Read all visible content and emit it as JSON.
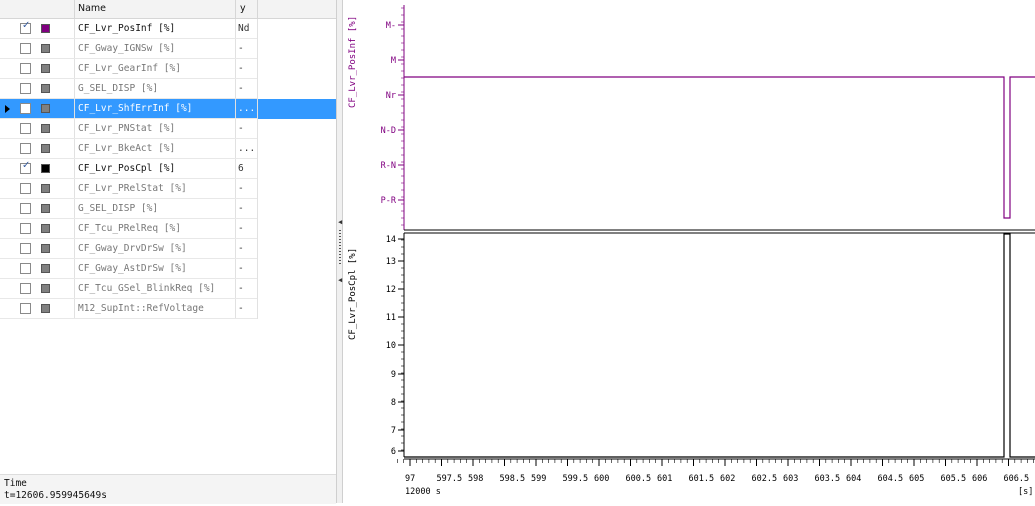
{
  "table": {
    "header": {
      "name": "Name",
      "y": "y"
    },
    "rows": [
      {
        "label": "CF_Lvr_PosInf [%]",
        "y": "Nd",
        "checked": true,
        "color": "#800080",
        "active": true
      },
      {
        "label": "CF_Gway_IGNSw [%]",
        "y": "-",
        "checked": false,
        "color": "#808080",
        "active": false
      },
      {
        "label": "CF_Lvr_GearInf [%]",
        "y": "-",
        "checked": false,
        "color": "#808080",
        "active": false
      },
      {
        "label": "G_SEL_DISP [%]",
        "y": "-",
        "checked": false,
        "color": "#808080",
        "active": false
      },
      {
        "label": "CF_Lvr_ShfErrInf [%]",
        "y": "...",
        "checked": false,
        "color": "#808080",
        "active": false,
        "selected": true
      },
      {
        "label": "CF_Lvr_PNStat [%]",
        "y": "-",
        "checked": false,
        "color": "#808080",
        "active": false
      },
      {
        "label": "CF_Lvr_BkeAct [%]",
        "y": "...",
        "checked": false,
        "color": "#808080",
        "active": false
      },
      {
        "label": "CF_Lvr_PosCpl [%]",
        "y": "6",
        "checked": true,
        "color": "#000000",
        "active": true
      },
      {
        "label": "CF_Lvr_PRelStat [%]",
        "y": "-",
        "checked": false,
        "color": "#808080",
        "active": false
      },
      {
        "label": "G_SEL_DISP [%]",
        "y": "-",
        "checked": false,
        "color": "#808080",
        "active": false
      },
      {
        "label": "CF_Tcu_PRelReq [%]",
        "y": "-",
        "checked": false,
        "color": "#808080",
        "active": false
      },
      {
        "label": "CF_Gway_DrvDrSw [%]",
        "y": "-",
        "checked": false,
        "color": "#808080",
        "active": false
      },
      {
        "label": "CF_Gway_AstDrSw [%]",
        "y": "-",
        "checked": false,
        "color": "#808080",
        "active": false
      },
      {
        "label": "CF_Tcu_GSel_BlinkReq [%]",
        "y": "-",
        "checked": false,
        "color": "#808080",
        "active": false
      },
      {
        "label": "M12_SupInt::RefVoltage",
        "y": "-",
        "checked": false,
        "color": "#808080",
        "active": false
      }
    ]
  },
  "footer": {
    "label": "Time",
    "value": "t=12606.959945649s"
  },
  "plot_top": {
    "axis_label": "CF_Lvr_PosInf [%]",
    "color": "#800080",
    "ticks": [
      "M-",
      "M",
      "Nr",
      "N-D",
      "R-N",
      "P-R"
    ]
  },
  "plot_bottom": {
    "axis_label": "CF_Lvr_PosCpl [%]",
    "color": "#000000",
    "ticks": [
      "14",
      "13",
      "12",
      "11",
      "10",
      "9",
      "8",
      "7",
      "6"
    ]
  },
  "x_axis": {
    "tick_labels": [
      "97",
      "597.5",
      "598",
      "598.5",
      "599",
      "599.5",
      "600",
      "600.5",
      "601",
      "601.5",
      "602",
      "602.5",
      "603",
      "603.5",
      "604",
      "604.5",
      "605",
      "605.5",
      "606",
      "606.5",
      "6"
    ],
    "offset_label": "12000 s",
    "unit": "[s]"
  }
}
